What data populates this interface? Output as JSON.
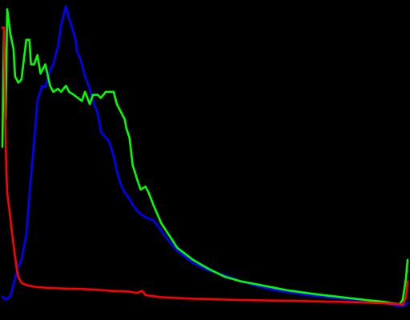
{
  "chart_data": {
    "type": "line",
    "title": "",
    "xlabel": "",
    "ylabel": "",
    "grid": false,
    "legend": "none",
    "background": "#000000",
    "xlim": [
      0,
      255
    ],
    "ylim": [
      0,
      100
    ],
    "series": [
      {
        "color": "#0000ff",
        "x": [
          0,
          2,
          5,
          8,
          10,
          12,
          15,
          17,
          20,
          22,
          25,
          27,
          30,
          32,
          35,
          37,
          40,
          42,
          45,
          46,
          47,
          49,
          50,
          52,
          55,
          57,
          60,
          62,
          65,
          67,
          70,
          72,
          75,
          77,
          80,
          82,
          85,
          87,
          90,
          92,
          95,
          100,
          105,
          110,
          120,
          130,
          140,
          150,
          160,
          170,
          180,
          190,
          200,
          210,
          220,
          230,
          235,
          240,
          245,
          248,
          250,
          252,
          254,
          255
        ],
        "values": [
          4.0,
          3.0,
          4.0,
          10.0,
          14.0,
          16.0,
          24.0,
          37.0,
          55.0,
          68.0,
          73.0,
          72.5,
          78.0,
          80.0,
          86.0,
          93.0,
          99.0,
          95.0,
          90.0,
          88.0,
          84.0,
          82.0,
          80.0,
          76.0,
          72.0,
          68.0,
          64.0,
          58.0,
          56.0,
          55.0,
          50.0,
          45.0,
          40.0,
          38.0,
          36.0,
          34.0,
          32.0,
          31.0,
          30.0,
          29.5,
          29.0,
          25.5,
          22.0,
          19.0,
          15.0,
          12.5,
          11.0,
          9.0,
          7.5,
          6.2,
          5.4,
          4.6,
          4.0,
          3.5,
          3.0,
          2.5,
          2.0,
          1.8,
          1.5,
          1.0,
          0.8,
          1.0,
          1.5,
          2.0
        ]
      },
      {
        "color": "#00ff00",
        "x": [
          0,
          1,
          2,
          3,
          5,
          7,
          8,
          10,
          12,
          15,
          17,
          18,
          20,
          22,
          24,
          27,
          30,
          32,
          35,
          37,
          40,
          42,
          45,
          50,
          52,
          55,
          57,
          60,
          62,
          65,
          67,
          70,
          72,
          75,
          77,
          78,
          80,
          82,
          85,
          87,
          90,
          92,
          95,
          100,
          105,
          110,
          120,
          130,
          140,
          150,
          160,
          170,
          180,
          190,
          200,
          210,
          220,
          230,
          240,
          245,
          250,
          252,
          254,
          255
        ],
        "values": [
          53.0,
          91.0,
          62.0,
          98.0,
          90.0,
          85.0,
          76.0,
          74.0,
          75.0,
          88.0,
          88.0,
          80.0,
          80.0,
          83.0,
          77.0,
          80.0,
          73.0,
          71.0,
          72.0,
          71.0,
          73.0,
          71.0,
          70.0,
          68.0,
          71.0,
          67.0,
          70.0,
          70.0,
          69.0,
          71.0,
          71.0,
          71.0,
          67.0,
          64.0,
          62.0,
          59.0,
          56.0,
          47.0,
          42.0,
          39.0,
          40.0,
          38.0,
          34.0,
          28.0,
          24.0,
          20.0,
          16.0,
          13.0,
          10.5,
          9.0,
          8.0,
          7.0,
          6.0,
          5.3,
          4.6,
          4.0,
          3.4,
          2.8,
          2.3,
          1.8,
          1.5,
          3.0,
          10.0,
          16.0
        ]
      },
      {
        "color": "#ff0000",
        "x": [
          0,
          1,
          2,
          3,
          4,
          5,
          6,
          7,
          8,
          9,
          10,
          12,
          15,
          20,
          25,
          30,
          40,
          50,
          60,
          70,
          80,
          85,
          88,
          90,
          95,
          100,
          110,
          120,
          130,
          140,
          150,
          160,
          180,
          200,
          220,
          240,
          250,
          252,
          254,
          255
        ],
        "values": [
          92.0,
          92.0,
          54.0,
          38.0,
          34.0,
          30.0,
          25.0,
          21.0,
          17.0,
          13.0,
          10.5,
          8.5,
          7.8,
          7.2,
          7.0,
          6.8,
          6.6,
          6.5,
          6.2,
          5.8,
          5.6,
          5.2,
          5.9,
          4.5,
          4.1,
          3.8,
          3.5,
          3.3,
          3.2,
          3.0,
          2.9,
          2.8,
          2.6,
          2.4,
          2.2,
          1.8,
          1.5,
          1.2,
          4.0,
          9.0
        ]
      }
    ]
  }
}
